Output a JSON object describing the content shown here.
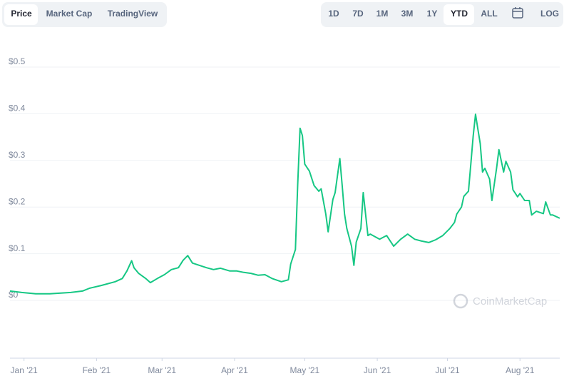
{
  "toolbar": {
    "tabs": [
      "Price",
      "Market Cap",
      "TradingView"
    ],
    "ranges": [
      "1D",
      "7D",
      "1M",
      "3M",
      "1Y",
      "YTD",
      "ALL"
    ],
    "log": "LOG"
  },
  "watermark": "CoinMarketCap",
  "chart_data": {
    "type": "line",
    "color": "#16c784",
    "grid": true,
    "x": [
      -6,
      -1,
      5,
      11,
      20,
      25,
      28,
      33,
      39,
      42,
      44,
      46,
      47,
      49,
      52,
      54,
      57,
      60,
      63,
      66,
      68,
      70,
      72,
      75,
      78,
      81,
      84,
      88,
      91,
      94,
      97,
      100,
      103,
      106,
      110,
      113,
      114,
      116,
      117,
      118,
      119,
      120,
      122,
      124,
      126,
      127,
      129,
      130,
      132,
      133,
      135,
      136,
      137,
      138,
      140,
      141,
      142,
      144,
      145,
      147,
      148,
      152,
      155,
      158,
      161,
      164,
      167,
      170,
      173,
      176,
      179,
      182,
      184,
      185,
      187,
      188,
      190,
      191,
      192,
      193,
      194,
      195,
      196,
      197,
      199,
      200,
      202,
      203,
      205,
      206,
      208,
      209,
      211,
      212,
      214,
      216,
      217,
      219,
      222,
      223,
      225,
      226,
      229
    ],
    "values": [
      0.02,
      0.017,
      0.014,
      0.014,
      0.017,
      0.02,
      0.026,
      0.032,
      0.04,
      0.047,
      0.063,
      0.085,
      0.07,
      0.058,
      0.047,
      0.038,
      0.047,
      0.055,
      0.066,
      0.07,
      0.086,
      0.096,
      0.08,
      0.075,
      0.07,
      0.066,
      0.069,
      0.063,
      0.063,
      0.06,
      0.058,
      0.054,
      0.055,
      0.047,
      0.04,
      0.044,
      0.078,
      0.109,
      0.248,
      0.369,
      0.353,
      0.292,
      0.277,
      0.246,
      0.234,
      0.239,
      0.185,
      0.147,
      0.216,
      0.231,
      0.304,
      0.246,
      0.185,
      0.154,
      0.116,
      0.075,
      0.125,
      0.154,
      0.231,
      0.139,
      0.142,
      0.131,
      0.139,
      0.116,
      0.131,
      0.142,
      0.131,
      0.127,
      0.124,
      0.13,
      0.139,
      0.154,
      0.167,
      0.185,
      0.2,
      0.223,
      0.234,
      0.292,
      0.352,
      0.399,
      0.367,
      0.336,
      0.275,
      0.283,
      0.26,
      0.214,
      0.283,
      0.323,
      0.275,
      0.298,
      0.275,
      0.237,
      0.222,
      0.229,
      0.214,
      0.214,
      0.183,
      0.191,
      0.186,
      0.211,
      0.183,
      0.183,
      0.176
    ],
    "xlim": [
      -6,
      229
    ],
    "xticks": [
      {
        "value": 0,
        "label": "Jan '21"
      },
      {
        "value": 31,
        "label": "Feb '21"
      },
      {
        "value": 59,
        "label": "Mar '21"
      },
      {
        "value": 90,
        "label": "Apr '21"
      },
      {
        "value": 120,
        "label": "May '21"
      },
      {
        "value": 151,
        "label": "Jun '21"
      },
      {
        "value": 181,
        "label": "Jul '21"
      },
      {
        "value": 212,
        "label": "Aug '21"
      }
    ],
    "ylim": [
      0,
      0.5
    ],
    "yticks": [
      {
        "value": 0,
        "label": "$0"
      },
      {
        "value": 0.1,
        "label": "$0.1"
      },
      {
        "value": 0.2,
        "label": "$0.2"
      },
      {
        "value": 0.3,
        "label": "$0.3"
      },
      {
        "value": 0.4,
        "label": "$0.4"
      },
      {
        "value": 0.5,
        "label": "$0.5"
      }
    ]
  }
}
